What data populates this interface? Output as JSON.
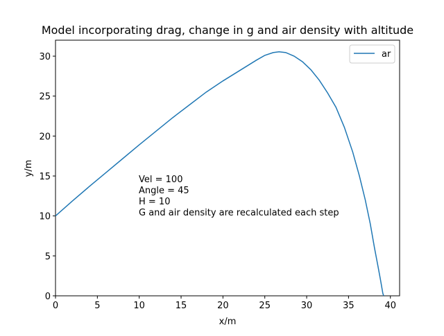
{
  "chart_data": {
    "type": "line",
    "title": "Model incorporating drag, change in g and air density with altitude",
    "xlabel": "x/m",
    "ylabel": "y/m",
    "xlim": [
      0,
      41.1
    ],
    "ylim": [
      0,
      32
    ],
    "xticks": [
      0,
      5,
      10,
      15,
      20,
      25,
      30,
      35,
      40
    ],
    "yticks": [
      0,
      5,
      10,
      15,
      20,
      25,
      30
    ],
    "grid": false,
    "legend_position": "top-right",
    "series": [
      {
        "name": "ar",
        "color": "#1f77b4",
        "x": [
          0,
          2,
          4,
          6,
          8,
          10,
          12,
          14,
          16,
          18,
          20,
          22,
          24,
          25,
          26,
          26.7,
          27.5,
          28.5,
          29.5,
          30.5,
          31.5,
          32.5,
          33.5,
          34.5,
          35.5,
          36.3,
          37,
          37.6,
          38.1,
          38.5,
          38.8,
          39.0,
          39.1,
          39.2
        ],
        "y": [
          10,
          11.85,
          13.65,
          15.4,
          17.15,
          18.9,
          20.6,
          22.3,
          23.9,
          25.5,
          26.9,
          28.2,
          29.5,
          30.1,
          30.45,
          30.55,
          30.45,
          30.0,
          29.3,
          28.3,
          27.0,
          25.4,
          23.6,
          21.1,
          18.0,
          15.0,
          12.0,
          9.0,
          6.0,
          3.8,
          2.1,
          0.9,
          0.3,
          0
        ]
      }
    ],
    "annotation": {
      "lines": [
        "Vel = 100",
        "Angle = 45",
        "H = 10",
        "G and air density are recalculated each step"
      ]
    }
  }
}
